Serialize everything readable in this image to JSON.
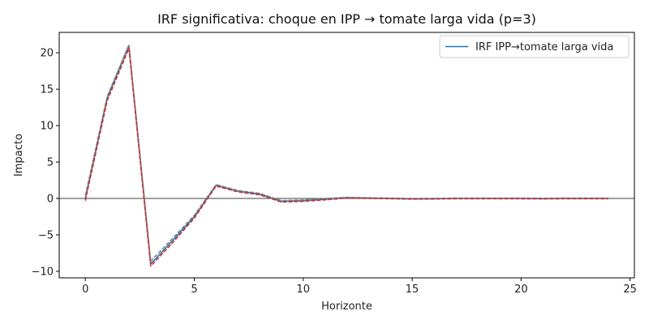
{
  "chart_data": {
    "type": "line",
    "title": "IRF significativa: choque en IPP → tomate larga vida (p=3)",
    "xlabel": "Horizonte",
    "ylabel": "Impacto",
    "xlim": [
      -1.2,
      25.2
    ],
    "ylim": [
      -10.9,
      22.8
    ],
    "xticks": [
      0,
      5,
      10,
      15,
      20,
      25
    ],
    "yticks": [
      -10,
      -5,
      0,
      5,
      10,
      15,
      20
    ],
    "x": [
      0,
      1,
      2,
      3,
      4,
      5,
      6,
      7,
      8,
      9,
      10,
      11,
      12,
      13,
      14,
      15,
      16,
      17,
      18,
      19,
      20,
      21,
      22,
      23,
      24
    ],
    "series": [
      {
        "name": "IRF IPP→tomate larga vida",
        "color": "#1f77b4",
        "style": "solid",
        "values": [
          0,
          13.8,
          21.0,
          -9.0,
          -5.8,
          -2.5,
          1.8,
          1.0,
          0.6,
          -0.4,
          -0.3,
          -0.1,
          0.1,
          0.05,
          0.0,
          -0.05,
          -0.03,
          0.0,
          0.0,
          0.0,
          0.0,
          -0.02,
          0.0,
          0.0,
          0.0
        ]
      },
      {
        "name": "",
        "color": "#808080",
        "style": "dashed",
        "values": [
          0.4,
          14.0,
          21.1,
          -8.6,
          -5.5,
          -2.3,
          1.9,
          1.1,
          0.7,
          -0.3,
          -0.2,
          0.0,
          0.15,
          0.1,
          0.05,
          0.0,
          0.02,
          0.05,
          0.05,
          0.05,
          0.05,
          0.03,
          0.05,
          0.05,
          0.05
        ]
      },
      {
        "name": "",
        "color": "#d62728",
        "style": "dashed",
        "values": [
          -0.3,
          13.4,
          20.6,
          -9.3,
          -6.1,
          -2.7,
          1.7,
          0.9,
          0.5,
          -0.5,
          -0.4,
          -0.2,
          0.05,
          0.0,
          -0.05,
          -0.1,
          -0.08,
          -0.05,
          -0.05,
          -0.05,
          -0.05,
          -0.07,
          -0.05,
          -0.05,
          -0.05
        ]
      }
    ],
    "zero_line": true,
    "grid": false,
    "legend": "top-right"
  }
}
